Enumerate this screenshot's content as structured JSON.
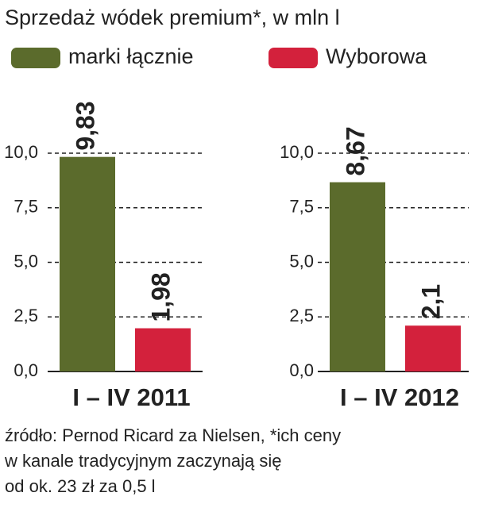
{
  "chart_data": {
    "type": "bar",
    "title": "Sprzedaż wódek premium*, w mln l",
    "categories": [
      "I – IV 2011",
      "I – IV 2012"
    ],
    "series": [
      {
        "name": "marki łącznie",
        "color": "#5b6b2c",
        "values": [
          9.83,
          8.67
        ],
        "value_labels": [
          "9,83",
          "8,67"
        ]
      },
      {
        "name": "Wyborowa",
        "color": "#d3213c",
        "values": [
          1.98,
          2.1
        ],
        "value_labels": [
          "1,98",
          "2,1"
        ]
      }
    ],
    "ylim": [
      0,
      10
    ],
    "yticks": [
      {
        "value": 0,
        "label": "0,0"
      },
      {
        "value": 2.5,
        "label": "2,5"
      },
      {
        "value": 5,
        "label": "5,0"
      },
      {
        "value": 7.5,
        "label": "7,5"
      },
      {
        "value": 10,
        "label": "10,0"
      }
    ],
    "grid": true
  },
  "source": [
    "źródło: Pernod Ricard za Nielsen, *ich ceny",
    "w kanale tradycyjnym zaczynają się",
    "od ok. 23 zł za 0,5 l"
  ]
}
